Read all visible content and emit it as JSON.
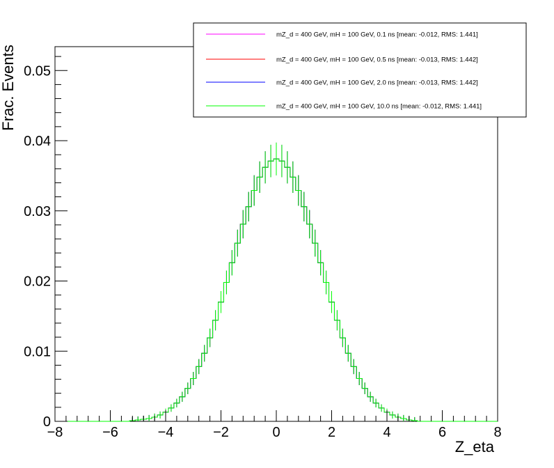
{
  "chart_data": {
    "type": "line",
    "xlabel": "Z_eta",
    "ylabel": "Frac. Events",
    "xlim": [
      -8,
      8
    ],
    "ylim": [
      0,
      0.0534
    ],
    "x_ticks": [
      "−8",
      "−6",
      "−4",
      "−2",
      "0",
      "2",
      "4",
      "6",
      "8"
    ],
    "y_ticks": [
      "0",
      "0.01",
      "0.02",
      "0.03",
      "0.04",
      "0.05"
    ],
    "x_tick_values": [
      -8,
      -6,
      -4,
      -2,
      0,
      2,
      4,
      6,
      8
    ],
    "y_tick_values": [
      0,
      0.01,
      0.02,
      0.03,
      0.04,
      0.05
    ],
    "legend_position": "top-right",
    "grid": false,
    "x": [
      -5.2,
      -5.0,
      -4.8,
      -4.6,
      -4.4,
      -4.2,
      -4.0,
      -3.8,
      -3.6,
      -3.4,
      -3.2,
      -3.0,
      -2.8,
      -2.6,
      -2.4,
      -2.2,
      -2.0,
      -1.8,
      -1.6,
      -1.4,
      -1.2,
      -1.0,
      -0.8,
      -0.6,
      -0.4,
      -0.2,
      0.0,
      0.2,
      0.4,
      0.6,
      0.8,
      1.0,
      1.2,
      1.4,
      1.6,
      1.8,
      2.0,
      2.2,
      2.4,
      2.6,
      2.8,
      3.0,
      3.2,
      3.4,
      3.6,
      3.8,
      4.0,
      4.2,
      4.4,
      4.6,
      4.8,
      5.0
    ],
    "series": [
      {
        "name": "mZ_d = 400 GeV, mH = 100 GeV, 0.1 ns [mean: -0.012, RMS: 1.441]",
        "color": "#ff00ff",
        "values": [
          0.0001,
          0.0002,
          0.0003,
          0.0004,
          0.0006,
          0.0009,
          0.0013,
          0.0019,
          0.0026,
          0.0035,
          0.0047,
          0.0061,
          0.0078,
          0.0097,
          0.0119,
          0.0144,
          0.017,
          0.0198,
          0.0226,
          0.0254,
          0.0281,
          0.0306,
          0.0329,
          0.0348,
          0.0362,
          0.0371,
          0.0374,
          0.0371,
          0.0362,
          0.0348,
          0.0329,
          0.0306,
          0.0281,
          0.0254,
          0.0226,
          0.0198,
          0.017,
          0.0144,
          0.0119,
          0.0097,
          0.0078,
          0.0061,
          0.0047,
          0.0035,
          0.0026,
          0.0019,
          0.0013,
          0.0009,
          0.0006,
          0.0004,
          0.0002,
          0.0001
        ]
      },
      {
        "name": "mZ_d = 400 GeV, mH = 100 GeV, 0.5 ns [mean: -0.013, RMS: 1.442]",
        "color": "#ff0000",
        "values": [
          0.0001,
          0.0002,
          0.0003,
          0.0004,
          0.0006,
          0.0009,
          0.0013,
          0.0019,
          0.0026,
          0.0035,
          0.0047,
          0.0061,
          0.0078,
          0.0097,
          0.0119,
          0.0144,
          0.017,
          0.0198,
          0.0226,
          0.0254,
          0.0281,
          0.0306,
          0.0329,
          0.0348,
          0.0362,
          0.0371,
          0.0374,
          0.0371,
          0.0362,
          0.0348,
          0.0329,
          0.0306,
          0.0281,
          0.0254,
          0.0226,
          0.0198,
          0.017,
          0.0144,
          0.0119,
          0.0097,
          0.0078,
          0.0061,
          0.0047,
          0.0035,
          0.0026,
          0.0019,
          0.0013,
          0.0009,
          0.0006,
          0.0004,
          0.0002,
          0.0001
        ]
      },
      {
        "name": "mZ_d = 400 GeV, mH = 100 GeV, 2.0 ns [mean: -0.013, RMS: 1.442]",
        "color": "#0000ff",
        "values": [
          0.0001,
          0.0002,
          0.0003,
          0.0004,
          0.0006,
          0.0009,
          0.0013,
          0.0019,
          0.0026,
          0.0035,
          0.0047,
          0.0061,
          0.0078,
          0.0097,
          0.0119,
          0.0144,
          0.017,
          0.0198,
          0.0226,
          0.0254,
          0.0281,
          0.0306,
          0.0329,
          0.0348,
          0.0362,
          0.0371,
          0.0374,
          0.0371,
          0.0362,
          0.0348,
          0.0329,
          0.0306,
          0.0281,
          0.0254,
          0.0226,
          0.0198,
          0.017,
          0.0144,
          0.0119,
          0.0097,
          0.0078,
          0.0061,
          0.0047,
          0.0035,
          0.0026,
          0.0019,
          0.0013,
          0.0009,
          0.0006,
          0.0004,
          0.0002,
          0.0001
        ]
      },
      {
        "name": "mZ_d = 400 GeV, mH = 100 GeV, 10.0 ns [mean: -0.012, RMS: 1.441]",
        "color": "#00ff00",
        "values": [
          0.0001,
          0.0002,
          0.0003,
          0.0004,
          0.0006,
          0.0009,
          0.0013,
          0.0019,
          0.0026,
          0.0035,
          0.0047,
          0.0061,
          0.0078,
          0.0097,
          0.0119,
          0.0144,
          0.017,
          0.0198,
          0.0226,
          0.0254,
          0.0281,
          0.0306,
          0.0329,
          0.0348,
          0.0362,
          0.0371,
          0.0374,
          0.0371,
          0.0362,
          0.0348,
          0.0329,
          0.0306,
          0.0281,
          0.0254,
          0.0226,
          0.0198,
          0.017,
          0.0144,
          0.0119,
          0.0097,
          0.0078,
          0.0061,
          0.0047,
          0.0035,
          0.0026,
          0.0019,
          0.0013,
          0.0009,
          0.0006,
          0.0004,
          0.0002,
          0.0001
        ]
      }
    ]
  }
}
